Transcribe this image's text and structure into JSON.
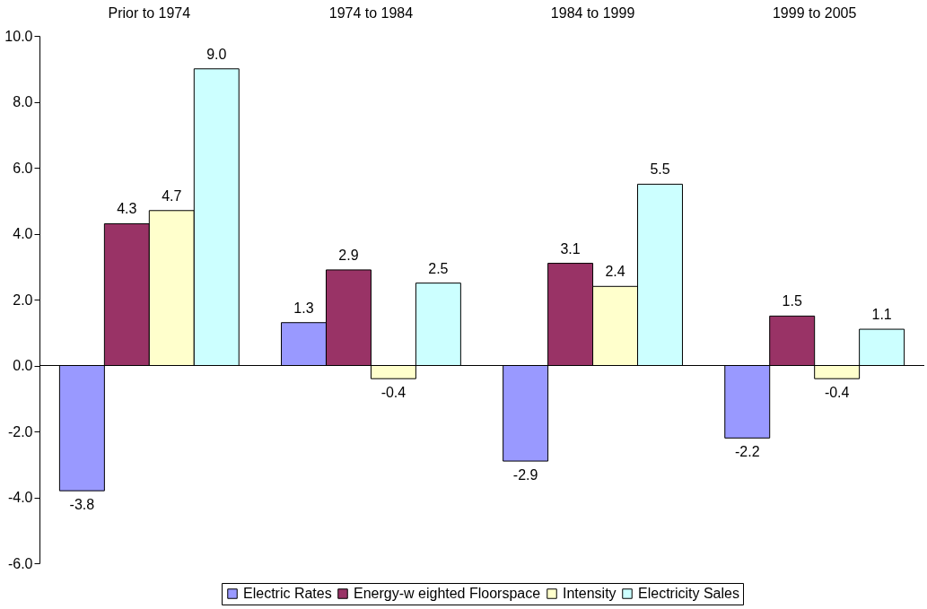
{
  "chart_data": {
    "type": "bar",
    "categories": [
      "Prior to 1974",
      "1974 to 1984",
      "1984 to 1999",
      "1999 to 2005"
    ],
    "series": [
      {
        "name": "Electric Rates",
        "color": "#9999ff",
        "values": [
          -3.8,
          1.3,
          -2.9,
          -2.2
        ],
        "value_labels": [
          "-3.8",
          "1.3",
          "-2.9",
          "-2.2"
        ]
      },
      {
        "name": "Energy-w eighted Floorspace",
        "color": "#993366",
        "values": [
          4.3,
          2.9,
          3.1,
          1.5
        ],
        "value_labels": [
          "4.3",
          "2.9",
          "3.1",
          "1.5"
        ]
      },
      {
        "name": "Intensity",
        "color": "#ffffcc",
        "values": [
          4.7,
          -0.4,
          2.4,
          -0.4
        ],
        "value_labels": [
          "4.7",
          "-0.4",
          "2.4",
          "-0.4"
        ]
      },
      {
        "name": "Electricity Sales",
        "color": "#ccffff",
        "values": [
          9.0,
          2.5,
          5.5,
          1.1
        ],
        "value_labels": [
          "9.0",
          "2.5",
          "5.5",
          "1.1"
        ]
      }
    ],
    "ylim": [
      -6,
      10
    ],
    "yticks": [
      {
        "value": -6,
        "label": "-6.0"
      },
      {
        "value": -4,
        "label": "-4.0"
      },
      {
        "value": -2,
        "label": "-2.0"
      },
      {
        "value": 0,
        "label": "0.0"
      },
      {
        "value": 2,
        "label": "2.0"
      },
      {
        "value": 4,
        "label": "4.0"
      },
      {
        "value": 6,
        "label": "6.0"
      },
      {
        "value": 8,
        "label": "8.0"
      },
      {
        "value": 10,
        "label": "10.0"
      }
    ],
    "legend": "bottom"
  }
}
